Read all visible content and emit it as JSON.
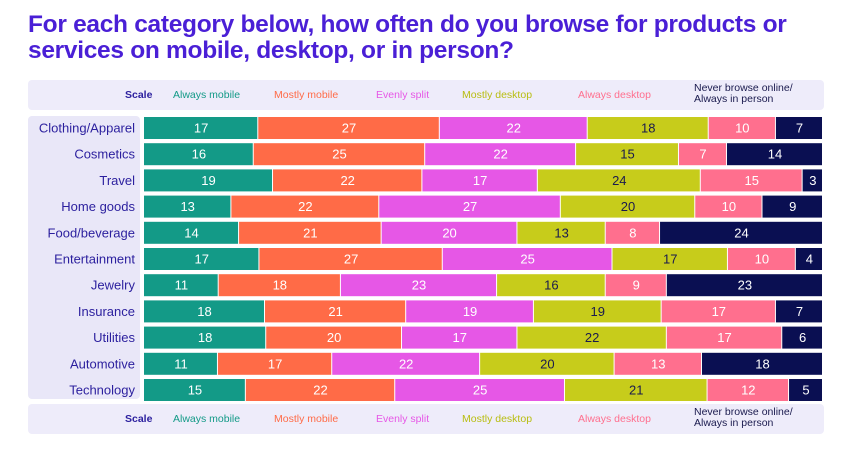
{
  "title": "For each category below, how often do you browse for products or services on mobile, desktop, or in person?",
  "legend": {
    "scale_label": "Scale",
    "items": [
      {
        "label": "Always mobile",
        "color": "#139a87",
        "text_color": "#139a87"
      },
      {
        "label": "Mostly mobile",
        "color": "#ff6b47",
        "text_color": "#ff6b47"
      },
      {
        "label": "Evenly split",
        "color": "#e657e6",
        "text_color": "#e657e6"
      },
      {
        "label": "Mostly desktop",
        "color": "#c7cc1b",
        "text_color": "#b8bd10"
      },
      {
        "label": "Always desktop",
        "color": "#ff6f8e",
        "text_color": "#ff6f8e"
      },
      {
        "label": "Never browse online/\nAlways in person",
        "color": "#0a0f52",
        "text_color": "#1a1a4e"
      }
    ]
  },
  "chart_data": {
    "type": "bar",
    "orientation": "horizontal",
    "stacked": true,
    "categories": [
      "Clothing/Apparel",
      "Cosmetics",
      "Travel",
      "Home goods",
      "Food/beverage",
      "Entertainment",
      "Jewelry",
      "Insurance",
      "Utilities",
      "Automotive",
      "Technology"
    ],
    "series": [
      {
        "name": "Always mobile",
        "values": [
          17,
          16,
          19,
          13,
          14,
          17,
          11,
          18,
          18,
          11,
          15
        ]
      },
      {
        "name": "Mostly mobile",
        "values": [
          27,
          25,
          22,
          22,
          21,
          27,
          18,
          21,
          20,
          17,
          22
        ]
      },
      {
        "name": "Evenly split",
        "values": [
          22,
          22,
          17,
          27,
          20,
          25,
          23,
          19,
          17,
          22,
          25
        ]
      },
      {
        "name": "Mostly desktop",
        "values": [
          18,
          15,
          24,
          20,
          13,
          17,
          16,
          19,
          22,
          20,
          21
        ]
      },
      {
        "name": "Always desktop",
        "values": [
          10,
          7,
          15,
          10,
          8,
          10,
          9,
          17,
          17,
          13,
          12
        ]
      },
      {
        "name": "Never browse online/\nAlways in person",
        "values": [
          7,
          14,
          3,
          9,
          24,
          4,
          23,
          7,
          6,
          18,
          5
        ]
      }
    ],
    "label_colors": [
      "#ffffff",
      "#ffffff",
      "#ffffff",
      "#1a1a4e",
      "#ffffff",
      "#ffffff"
    ]
  }
}
